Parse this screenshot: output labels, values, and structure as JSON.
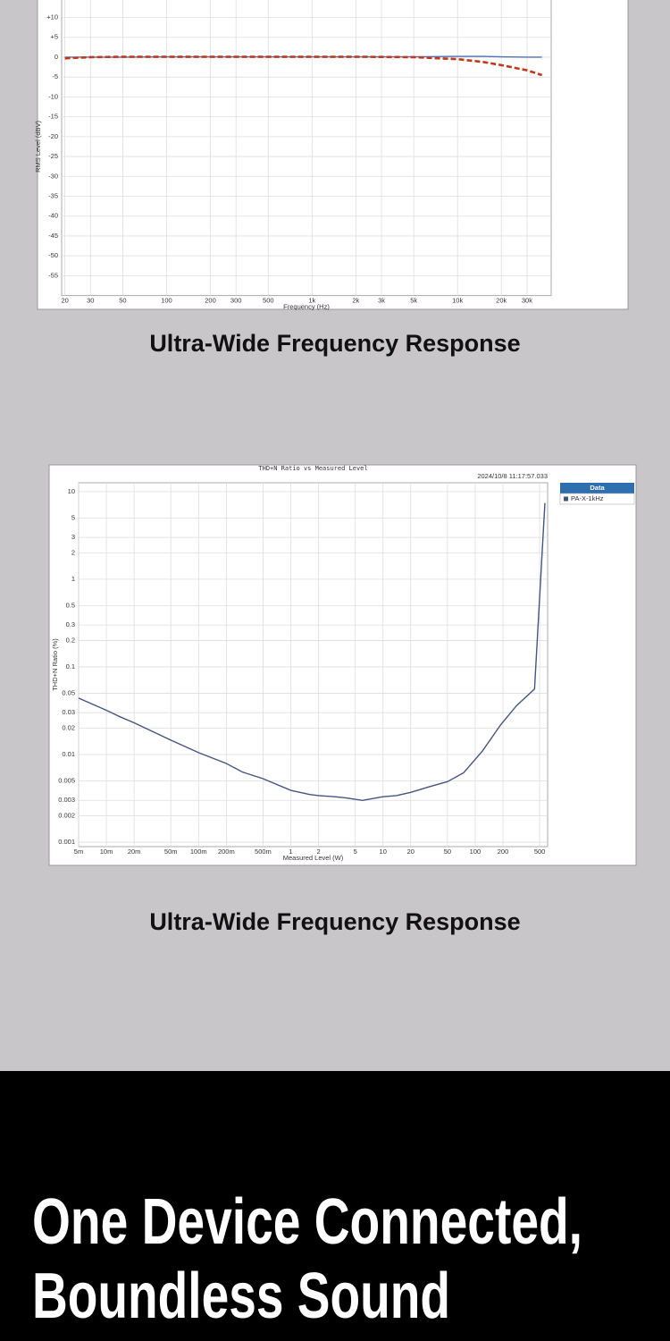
{
  "chart_data": [
    {
      "type": "line",
      "xscale": "log",
      "yscale": "linear",
      "xlabel": "Frequency (Hz)",
      "ylabel": "RMS Level (dBV)",
      "grid": true,
      "x": [
        20,
        30,
        50,
        100,
        200,
        500,
        1000,
        2000,
        5000,
        10000,
        15000,
        20000,
        30000,
        38000
      ],
      "xlim": [
        19,
        44000
      ],
      "xticks": [
        20,
        30,
        50,
        100,
        200,
        300,
        500,
        {
          "value": 1000,
          "label": "1k"
        },
        {
          "value": 2000,
          "label": "2k"
        },
        {
          "value": 3000,
          "label": "3k"
        },
        {
          "value": 5000,
          "label": "5k"
        },
        {
          "value": 10000,
          "label": "10k"
        },
        {
          "value": 20000,
          "label": "20k"
        },
        {
          "value": 30000,
          "label": "30k"
        }
      ],
      "ylim": [
        -60,
        15
      ],
      "yticks": [
        {
          "value": 10,
          "label": "+10"
        },
        {
          "value": 5,
          "label": "+5"
        },
        0,
        -5,
        -10,
        -15,
        -20,
        -25,
        -30,
        -35,
        -40,
        -45,
        -50,
        -55
      ],
      "series": [
        {
          "color": "#4a72b8",
          "linestyle": "solid",
          "values": [
            0,
            0,
            0,
            0.1,
            0.1,
            0.1,
            0.1,
            0.1,
            0.1,
            0.2,
            0.2,
            0.1,
            0,
            0
          ]
        },
        {
          "color": "#c0391b",
          "linestyle": "dashed",
          "values": [
            -0.3,
            0,
            0.1,
            0.1,
            0.1,
            0.1,
            0.1,
            0.1,
            0,
            -0.5,
            -1.2,
            -2,
            -3.3,
            -4.5
          ]
        }
      ]
    },
    {
      "type": "line",
      "title": "THD+N Ratio vs Measured Level",
      "timestamp": "2024/10/8 11:17:57.033",
      "xscale": "log",
      "yscale": "log",
      "xlabel": "Measured Level (W)",
      "ylabel": "THD+N Ratio (%)",
      "grid": true,
      "legend_title": "Data",
      "legend": "outside-right",
      "x": [
        0.005,
        0.01,
        0.014,
        0.02,
        0.05,
        0.1,
        0.2,
        0.3,
        0.5,
        1,
        1.6,
        2,
        3,
        4,
        6,
        10,
        14,
        20,
        32,
        50,
        75,
        120,
        190,
        280,
        440,
        570
      ],
      "xlim": [
        0.005,
        610
      ],
      "xticks": [
        {
          "value": 0.005,
          "label": "5m"
        },
        {
          "value": 0.01,
          "label": "10m"
        },
        {
          "value": 0.02,
          "label": "20m"
        },
        {
          "value": 0.05,
          "label": "50m"
        },
        {
          "value": 0.1,
          "label": "100m"
        },
        {
          "value": 0.2,
          "label": "200m"
        },
        {
          "value": 0.5,
          "label": "500m"
        },
        1,
        2,
        5,
        10,
        20,
        50,
        100,
        200,
        500
      ],
      "ylim": [
        0.00089,
        12.6
      ],
      "yticks": [
        10,
        5,
        3,
        2,
        1,
        0.5,
        0.3,
        0.2,
        0.1,
        0.05,
        0.03,
        0.02,
        0.01,
        0.005,
        0.003,
        0.002,
        0.001
      ],
      "series": [
        {
          "name": "PA-X-1kHz",
          "color": "#44557f",
          "linestyle": "solid",
          "values": [
            0.044,
            0.032,
            0.027,
            0.023,
            0.0146,
            0.0105,
            0.0079,
            0.0063,
            0.0053,
            0.0039,
            0.0035,
            0.0034,
            0.0033,
            0.0032,
            0.003,
            0.0033,
            0.0034,
            0.0037,
            0.0043,
            0.0049,
            0.0062,
            0.011,
            0.022,
            0.036,
            0.056,
            7.4
          ]
        }
      ]
    }
  ],
  "captions": [
    "Ultra-Wide Frequency Response",
    "Ultra-Wide Frequency Response"
  ],
  "banner": {
    "lines": [
      "One Device Connected,",
      "Boundless Sound"
    ]
  }
}
